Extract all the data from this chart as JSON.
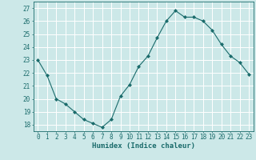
{
  "x": [
    0,
    1,
    2,
    3,
    4,
    5,
    6,
    7,
    8,
    9,
    10,
    11,
    12,
    13,
    14,
    15,
    16,
    17,
    18,
    19,
    20,
    21,
    22,
    23
  ],
  "y": [
    23.0,
    21.8,
    20.0,
    19.6,
    19.0,
    18.4,
    18.1,
    17.8,
    18.4,
    20.2,
    21.1,
    22.5,
    23.3,
    24.7,
    26.0,
    26.8,
    26.3,
    26.3,
    26.0,
    25.3,
    24.2,
    23.3,
    22.8,
    21.9
  ],
  "line_color": "#1a6b6b",
  "marker": "D",
  "marker_size": 2.0,
  "bg_color": "#cce8e8",
  "grid_color": "#ffffff",
  "xlabel": "Humidex (Indice chaleur)",
  "ylabel": "",
  "xlim": [
    -0.5,
    23.5
  ],
  "ylim": [
    17.5,
    27.5
  ],
  "yticks": [
    18,
    19,
    20,
    21,
    22,
    23,
    24,
    25,
    26,
    27
  ],
  "xticks": [
    0,
    1,
    2,
    3,
    4,
    5,
    6,
    7,
    8,
    9,
    10,
    11,
    12,
    13,
    14,
    15,
    16,
    17,
    18,
    19,
    20,
    21,
    22,
    23
  ],
  "xlabel_color": "#1a6b6b",
  "tick_color": "#1a6b6b",
  "label_fontsize": 6.5,
  "tick_fontsize": 5.5,
  "linewidth": 0.8
}
